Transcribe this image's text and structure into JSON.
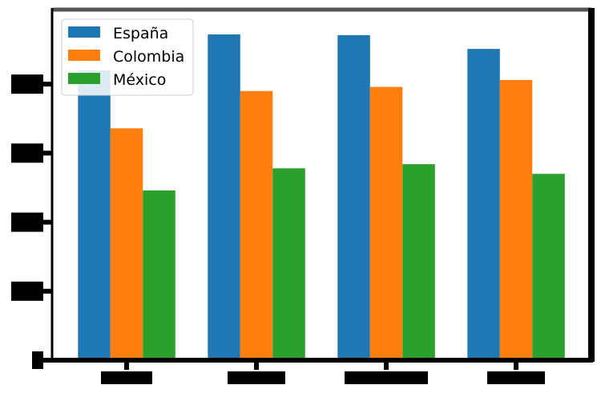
{
  "chart_data": {
    "type": "bar",
    "title": "",
    "xlabel": "",
    "ylabel": "",
    "categories": [
      "",
      "",
      "",
      ""
    ],
    "y_ticks": [
      0,
      1,
      2,
      3,
      4
    ],
    "y_tick_labels": [
      "",
      "",
      "",
      "",
      ""
    ],
    "ylim": [
      0,
      5.08
    ],
    "grid": false,
    "legend": "top-left",
    "series": [
      {
        "name": "España",
        "color": "#1f77b4",
        "values": [
          4.2,
          4.72,
          4.71,
          4.51
        ]
      },
      {
        "name": "Colombia",
        "color": "#ff7f0e",
        "values": [
          3.36,
          3.9,
          3.96,
          4.06
        ]
      },
      {
        "name": "México",
        "color": "#2ca02c",
        "values": [
          2.46,
          2.78,
          2.84,
          2.7
        ]
      }
    ]
  }
}
